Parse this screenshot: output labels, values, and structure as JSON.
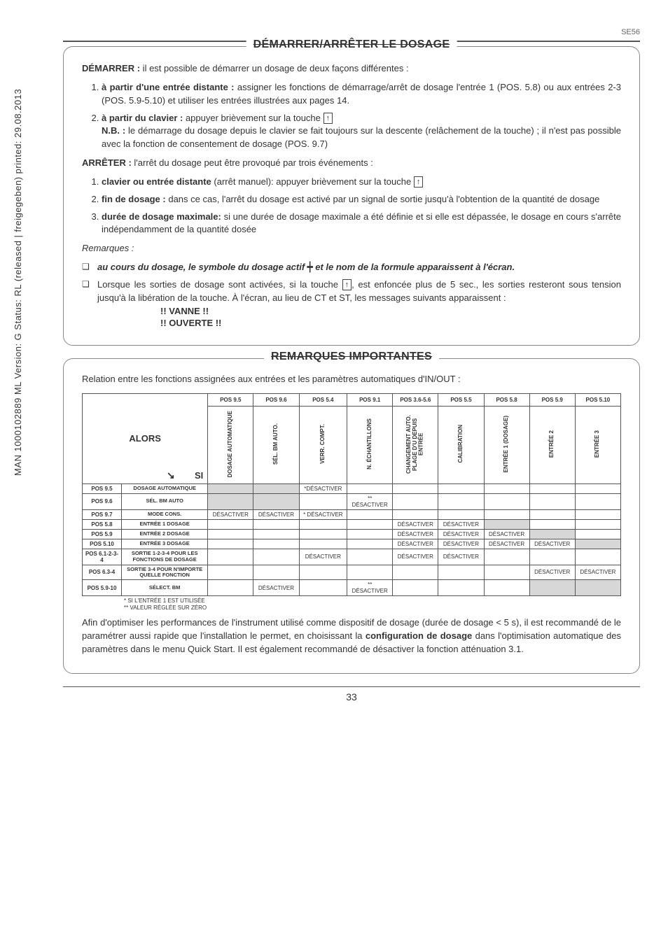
{
  "sidebar": "MAN 1000102889 ML Version: G  Status: RL (released | freigegeben)  printed: 29.08.2013",
  "page_code": "SE56",
  "sec1": {
    "title": "DÉMARRER/ARRÊTER LE DOSAGE",
    "start_intro_b": "DÉMARRER :",
    "start_intro": " il est possible de démarrer un dosage de deux façons différentes :",
    "s1_b": "à partir d'une entrée distante :",
    "s1_t": " assigner les fonctions de démarrage/arrêt de dosage l'entrée 1 (POS. 5.8) ou aux entrées 2-3 (POS. 5.9-5.10) et utiliser les entrées illustrées aux pages 14.",
    "s2_b": "à partir du clavier :",
    "s2_t": " appuyer brièvement sur la touche ",
    "nb_b": "N.B. :",
    "nb_t": " le démarrage du dosage depuis le clavier se fait toujours sur la descente (relâchement de la touche) ; il n'est pas possible avec la fonction de consentement de dosage (POS. 9.7)",
    "stop_intro_b": "ARRÊTER :",
    "stop_intro": " l'arrêt du dosage peut être provoqué par trois événements :",
    "a1_b": "clavier ou entrée distante",
    "a1_t": " (arrêt manuel): appuyer brièvement sur la touche ",
    "a2_b": "fin de dosage :",
    "a2_t": " dans ce cas, l'arrêt du dosage est activé par un signal de sortie jusqu'à l'obtention de la quantité de dosage",
    "a3_b": "durée de dosage maximale:",
    "a3_t": " si une durée de dosage maximale a été définie et si elle est dépassée, le dosage en cours s'arrête indépendamment de la quantité dosée",
    "rem_h": "Remarques :",
    "r1_a": "au cours du dosage, le symbole du dosage actif ",
    "r1_b": " et le nom de la formule apparaissent à l'écran.",
    "r2": "Lorsque les sorties de dosage sont activées, si la touche ",
    "r2b": ", est enfoncée plus de 5 sec., les sorties resteront sous tension jusqu'à la libération de la touche. À l'écran, au lieu de CT et ST, les messages suivants apparaissent :",
    "msg1": "!! VANNE !!",
    "msg2": "!! OUVERTE !!"
  },
  "sec2": {
    "title": "REMARQUES IMPORTANTES",
    "intro": "Relation entre les fonctions assignées aux entrées et les paramètres automatiques d'IN/OUT :",
    "alors": "ALORS",
    "si": "SI",
    "col_top": [
      "POS 9.5",
      "POS 9.6",
      "POS 5.4",
      "POS 9.1",
      "POS 3.6-5.6",
      "POS 5.5",
      "POS 5.8",
      "POS 5.9",
      "POS 5.10"
    ],
    "col_v": [
      "DOSAGE AUTOMATIQUE",
      "SÉL. BM AUTO.",
      "VERR. COMPT.",
      "N. ÉCHANTILLONS",
      "CHANGEMENT AUTO. PLAGE D'U DEPUIS ENTRÉE",
      "CALIBRATION",
      "ENTRÉE 1 (DOSAGE)",
      "ENTRÉE 2",
      "ENTRÉE 3"
    ],
    "rows": [
      {
        "l": "POS 9.5",
        "r": "DOSAGE AUTOMATIQUE",
        "c": [
          "sh",
          "sh",
          "*DÉSACTIVER",
          "",
          "",
          "",
          "",
          "",
          ""
        ]
      },
      {
        "l": "POS 9.6",
        "r": "SÉL. BM AUTO",
        "c": [
          "sh",
          "sh",
          "",
          "** DÉSACTIVER",
          "",
          "",
          "",
          "",
          ""
        ]
      },
      {
        "l": "POS 9.7",
        "r": "MODE CONS.",
        "c": [
          "DÉSACTIVER",
          "DÉSACTIVER",
          "* DÉSACTIVER",
          "",
          "",
          "",
          "",
          "",
          ""
        ]
      },
      {
        "l": "POS 5.8",
        "r": "ENTRÉE 1 DOSAGE",
        "c": [
          "",
          "",
          "",
          "",
          "DÉSACTIVER",
          "DÉSACTIVER",
          "sh",
          "",
          ""
        ]
      },
      {
        "l": "POS 5.9",
        "r": "ENTRÉE 2 DOSAGE",
        "c": [
          "",
          "",
          "",
          "",
          "DÉSACTIVER",
          "DÉSACTIVER",
          "DÉSACTIVER",
          "sh",
          ""
        ]
      },
      {
        "l": "POS 5.10",
        "r": "ENTRÉE 3 DOSAGE",
        "c": [
          "",
          "",
          "",
          "",
          "DÉSACTIVER",
          "DÉSACTIVER",
          "DÉSACTIVER",
          "DÉSACTIVER",
          "sh"
        ]
      },
      {
        "l": "POS 6.1-2-3-4",
        "r": "SORTIE 1-2-3-4 POUR LES FONCTIONS DE DOSAGE",
        "c": [
          "",
          "",
          "DÉSACTIVER",
          "",
          "DÉSACTIVER",
          "DÉSACTIVER",
          "",
          "",
          ""
        ]
      },
      {
        "l": "POS 6.3-4",
        "r": "SORTIE 3-4 POUR N'IMPORTE QUELLE FONCTION",
        "c": [
          "",
          "",
          "",
          "",
          "",
          "",
          "",
          "DÉSACTIVER",
          "DÉSACTIVER"
        ]
      },
      {
        "l": "POS 5.9-10",
        "r": "SÉLECT. BM",
        "c": [
          "",
          "DÉSACTIVER",
          "",
          "** DÉSACTIVER",
          "",
          "",
          "",
          "sh",
          "sh"
        ]
      }
    ],
    "fn1": "* SI L'ENTRÉE 1 EST UTILISÉE",
    "fn2": "** VALEUR RÉGLÉE SUR ZÉRO",
    "closing_a": "Afin d'optimiser les performances de l'instrument utilisé comme dispositif de dosage (durée de dosage < 5 s), il est recommandé de le paramétrer aussi rapide que l'installation le permet, en choisissant la ",
    "closing_b": "configuration de dosage",
    "closing_c": " dans l'optimisation automatique des paramètres dans le menu Quick Start. Il est également recommandé de désactiver la fonction atténuation 3.1."
  },
  "page_num": "33"
}
